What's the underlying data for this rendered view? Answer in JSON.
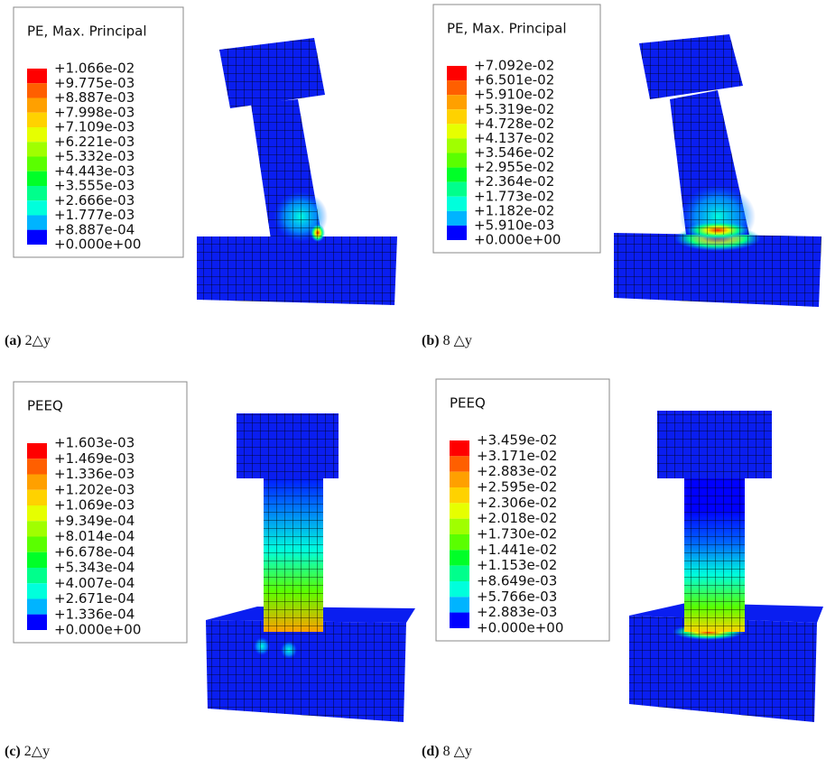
{
  "panels": [
    {
      "legend": {
        "title": "PE, Max. Principal",
        "labels": [
          "+1.066e-02",
          "+9.775e-03",
          "+8.887e-03",
          "+7.998e-03",
          "+7.109e-03",
          "+6.221e-03",
          "+5.332e-03",
          "+4.443e-03",
          "+3.555e-03",
          "+2.666e-03",
          "+1.777e-03",
          "+8.887e-04",
          "+0.000e+00"
        ]
      },
      "caption": {
        "label": "(a)",
        "text": "2△y"
      }
    },
    {
      "legend": {
        "title": "PE, Max. Principal",
        "labels": [
          "+7.092e-02",
          "+6.501e-02",
          "+5.910e-02",
          "+5.319e-02",
          "+4.728e-02",
          "+4.137e-02",
          "+3.546e-02",
          "+2.955e-02",
          "+2.364e-02",
          "+1.773e-02",
          "+1.182e-02",
          "+5.910e-03",
          "+0.000e+00"
        ]
      },
      "caption": {
        "label": "(b)",
        "text": "8 △y"
      }
    },
    {
      "legend": {
        "title": "PEEQ",
        "labels": [
          "+1.603e-03",
          "+1.469e-03",
          "+1.336e-03",
          "+1.202e-03",
          "+1.069e-03",
          "+9.349e-04",
          "+8.014e-04",
          "+6.678e-04",
          "+5.343e-04",
          "+4.007e-04",
          "+2.671e-04",
          "+1.336e-04",
          "+0.000e+00"
        ]
      },
      "caption": {
        "label": "(c)",
        "text": "2△y"
      }
    },
    {
      "legend": {
        "title": "PEEQ",
        "labels": [
          "+3.459e-02",
          "+3.171e-02",
          "+2.883e-02",
          "+2.595e-02",
          "+2.306e-02",
          "+2.018e-02",
          "+1.730e-02",
          "+1.441e-02",
          "+1.153e-02",
          "+8.649e-03",
          "+5.766e-03",
          "+2.883e-03",
          "+0.000e+00"
        ]
      },
      "caption": {
        "label": "(d)",
        "text": "8 △y"
      }
    }
  ]
}
